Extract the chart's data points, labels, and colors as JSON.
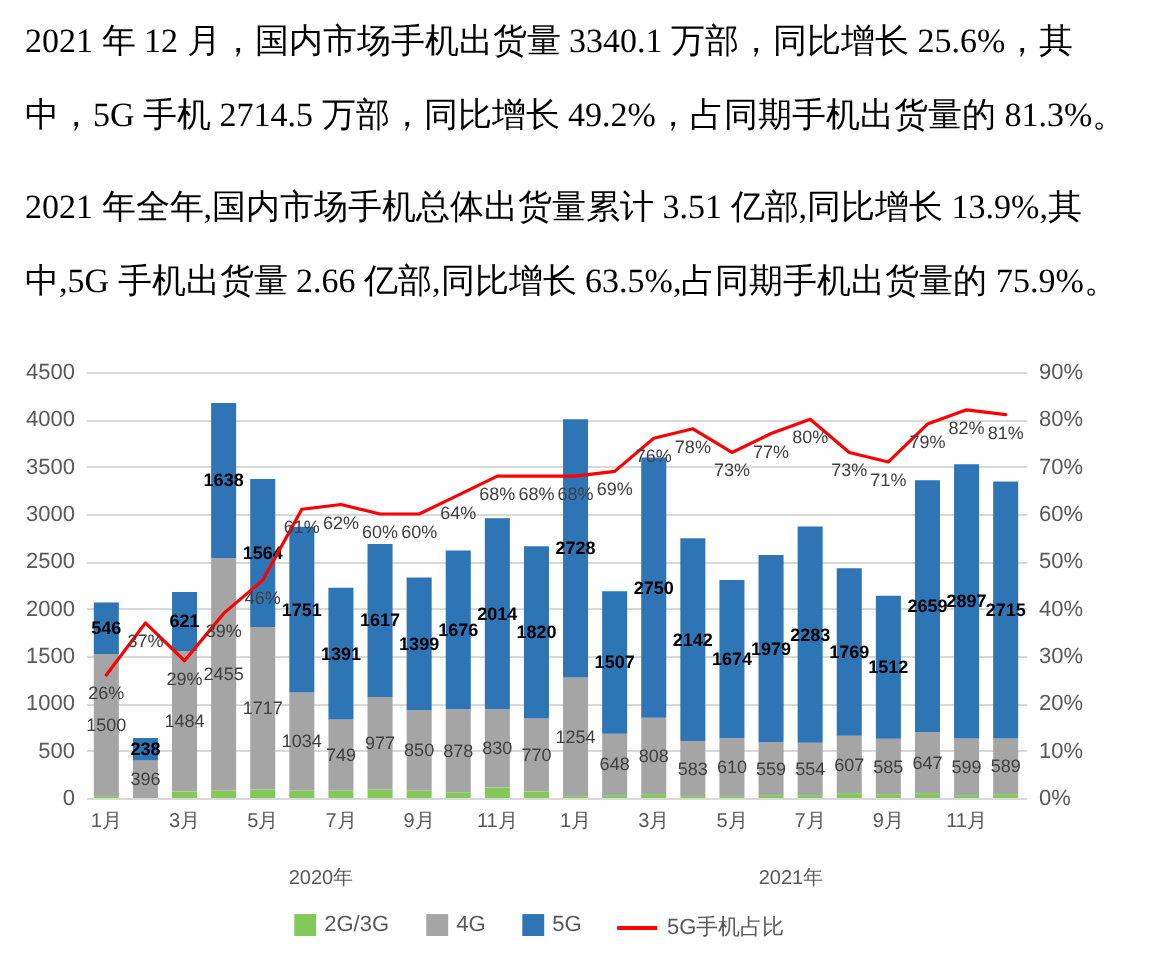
{
  "chart_data": {
    "type": "bar",
    "title": "2021 年 12 月，国内市场手机出货量 3340.1 万部，同比增长 25.6%，其中，5G 手机 2714.5 万部，同比增长 49.2%，占同期手机出货量的 81.3%。",
    "subtitle": "2021 年全年,国内市场手机总体出货量累计 3.51 亿部,同比增长 13.9%,其中,5G 手机出货量 2.66 亿部,同比增长 63.5%,占同期手机出货量的 75.9%。",
    "categories": [
      "1月",
      null,
      "3月",
      null,
      "5月",
      null,
      "7月",
      null,
      "9月",
      null,
      "11月",
      null,
      "1月",
      null,
      "3月",
      null,
      "5月",
      null,
      "7月",
      null,
      "9月",
      null,
      "11月",
      null
    ],
    "annotations": [
      "2020年",
      "2021年"
    ],
    "stacked": true,
    "series": [
      {
        "name": "2G/3G",
        "color": "#83c95a",
        "values": [
          20,
          null,
          70,
          80,
          90,
          80,
          80,
          90,
          80,
          60,
          110,
          70,
          20,
          30,
          40,
          20,
          20,
          30,
          30,
          50,
          40,
          50,
          30,
          40
        ]
      },
      {
        "name": "4G",
        "color": "#a5a5a5",
        "data_labels": true,
        "values": [
          1500,
          396,
          1484,
          2455,
          1717,
          1034,
          749,
          977,
          850,
          878,
          830,
          770,
          1254,
          648,
          808,
          583,
          610,
          559,
          554,
          607,
          585,
          647,
          599,
          589
        ]
      },
      {
        "name": "5G",
        "color": "#2e75b6",
        "data_labels": true,
        "values": [
          546,
          238,
          621,
          1638,
          1564,
          1751,
          1391,
          1617,
          1399,
          1676,
          2014,
          1820,
          2728,
          1507,
          2750,
          2142,
          1674,
          1979,
          2283,
          1769,
          1512,
          2659,
          2897,
          2715
        ]
      },
      {
        "name": "5G手机占比",
        "type": "line",
        "axis": "y2",
        "color": "#ff0000",
        "values": [
          26,
          37,
          29,
          39,
          46,
          61,
          62,
          60,
          60,
          64,
          68,
          68,
          68,
          69,
          76,
          78,
          73,
          77,
          80,
          73,
          71,
          79,
          82,
          81
        ],
        "value_labels": [
          "26%",
          "37%",
          "29%",
          "39%",
          "46%",
          "61%",
          "62%",
          "60%",
          "60%",
          "64%",
          "68%",
          "68%",
          "68%",
          "69%",
          "76%",
          "78%",
          "73%",
          "77%",
          "80%",
          "73%",
          "71%",
          "79%",
          "82%",
          "81%"
        ]
      }
    ],
    "ylim": [
      0,
      4500
    ],
    "yticks": [
      0,
      500,
      1000,
      1500,
      2000,
      2500,
      3000,
      3500,
      4000,
      4500
    ],
    "y2lim": [
      0,
      90
    ],
    "y2ticks": [
      {
        "value": 0,
        "label": "0%"
      },
      {
        "value": 10,
        "label": "10%"
      },
      {
        "value": 20,
        "label": "20%"
      },
      {
        "value": 30,
        "label": "30%"
      },
      {
        "value": 40,
        "label": "40%"
      },
      {
        "value": 50,
        "label": "50%"
      },
      {
        "value": 60,
        "label": "60%"
      },
      {
        "value": 70,
        "label": "70%"
      },
      {
        "value": 80,
        "label": "80%"
      },
      {
        "value": 90,
        "label": "90%"
      }
    ],
    "grid": "y",
    "legend": "bottom"
  }
}
